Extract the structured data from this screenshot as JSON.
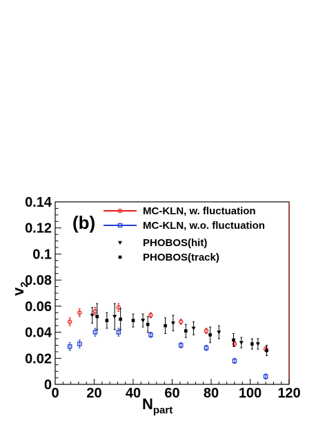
{
  "chart_data": {
    "type": "scatter",
    "panel_label": "(b)",
    "xlabel": "N",
    "xlabel_sub": "part",
    "ylabel": "v",
    "ylabel_sub": "2",
    "xlim": [
      0,
      120
    ],
    "ylim": [
      0,
      0.14
    ],
    "x_ticks": [
      0,
      20,
      40,
      60,
      80,
      100,
      120
    ],
    "x_tick_labels": [
      "0",
      "20",
      "40",
      "60",
      "80",
      "100",
      "120"
    ],
    "y_ticks": [
      0,
      0.02,
      0.04,
      0.06,
      0.08,
      0.1,
      0.12,
      0.14
    ],
    "y_tick_labels": [
      "0",
      "0.02",
      "0.04",
      "0.06",
      "0.08",
      "0.1",
      "0.12",
      "0.14"
    ],
    "grid": false,
    "legend_position": "top-right",
    "series": [
      {
        "name": "MC-KLN, w. fluctuation",
        "color": "#e41a1c",
        "marker": "open-circle",
        "legend_line": true,
        "points": [
          {
            "x": 7.5,
            "y": 0.048,
            "err": 0.003
          },
          {
            "x": 12.5,
            "y": 0.055,
            "err": 0.003
          },
          {
            "x": 20.5,
            "y": 0.056,
            "err": 0.003
          },
          {
            "x": 32.5,
            "y": 0.059,
            "err": 0.003
          },
          {
            "x": 49.0,
            "y": 0.053,
            "err": 0.002
          },
          {
            "x": 64.5,
            "y": 0.048,
            "err": 0.002
          },
          {
            "x": 77.5,
            "y": 0.041,
            "err": 0.002
          },
          {
            "x": 92.0,
            "y": 0.031,
            "err": 0.002
          },
          {
            "x": 108.0,
            "y": 0.027,
            "err": 0.002
          }
        ]
      },
      {
        "name": "MC-KLN, w.o. fluctuation",
        "color": "#1f3fd6",
        "marker": "open-square",
        "legend_line": true,
        "points": [
          {
            "x": 7.5,
            "y": 0.029,
            "err": 0.003
          },
          {
            "x": 12.5,
            "y": 0.031,
            "err": 0.003
          },
          {
            "x": 20.5,
            "y": 0.04,
            "err": 0.003
          },
          {
            "x": 32.5,
            "y": 0.04,
            "err": 0.003
          },
          {
            "x": 49.0,
            "y": 0.038,
            "err": 0.002
          },
          {
            "x": 64.5,
            "y": 0.03,
            "err": 0.002
          },
          {
            "x": 77.5,
            "y": 0.028,
            "err": 0.002
          },
          {
            "x": 92.0,
            "y": 0.018,
            "err": 0.002
          },
          {
            "x": 108.0,
            "y": 0.006,
            "err": 0.002
          }
        ]
      },
      {
        "name": "PHOBOS(hit)",
        "color": "#000000",
        "marker": "triangle-down",
        "legend_line": false,
        "points": [
          {
            "x": 19.0,
            "y": 0.053,
            "err": 0.006
          },
          {
            "x": 30.5,
            "y": 0.052,
            "err": 0.01
          },
          {
            "x": 45.0,
            "y": 0.049,
            "err": 0.005
          },
          {
            "x": 60.5,
            "y": 0.047,
            "err": 0.006
          },
          {
            "x": 71.0,
            "y": 0.043,
            "err": 0.005
          },
          {
            "x": 84.0,
            "y": 0.04,
            "err": 0.005
          },
          {
            "x": 95.5,
            "y": 0.032,
            "err": 0.004
          },
          {
            "x": 104.0,
            "y": 0.031,
            "err": 0.004
          }
        ]
      },
      {
        "name": "PHOBOS(track)",
        "color": "#000000",
        "marker": "filled-square",
        "legend_line": false,
        "points": [
          {
            "x": 21.5,
            "y": 0.052,
            "err": 0.01
          },
          {
            "x": 26.5,
            "y": 0.049,
            "err": 0.006
          },
          {
            "x": 33.5,
            "y": 0.05,
            "err": 0.008
          },
          {
            "x": 40.0,
            "y": 0.049,
            "err": 0.005
          },
          {
            "x": 47.5,
            "y": 0.046,
            "err": 0.006
          },
          {
            "x": 56.5,
            "y": 0.045,
            "err": 0.006
          },
          {
            "x": 67.0,
            "y": 0.041,
            "err": 0.005
          },
          {
            "x": 79.5,
            "y": 0.038,
            "err": 0.006
          },
          {
            "x": 91.5,
            "y": 0.034,
            "err": 0.005
          },
          {
            "x": 101.0,
            "y": 0.031,
            "err": 0.004
          },
          {
            "x": 108.5,
            "y": 0.026,
            "err": 0.004
          }
        ]
      }
    ]
  }
}
